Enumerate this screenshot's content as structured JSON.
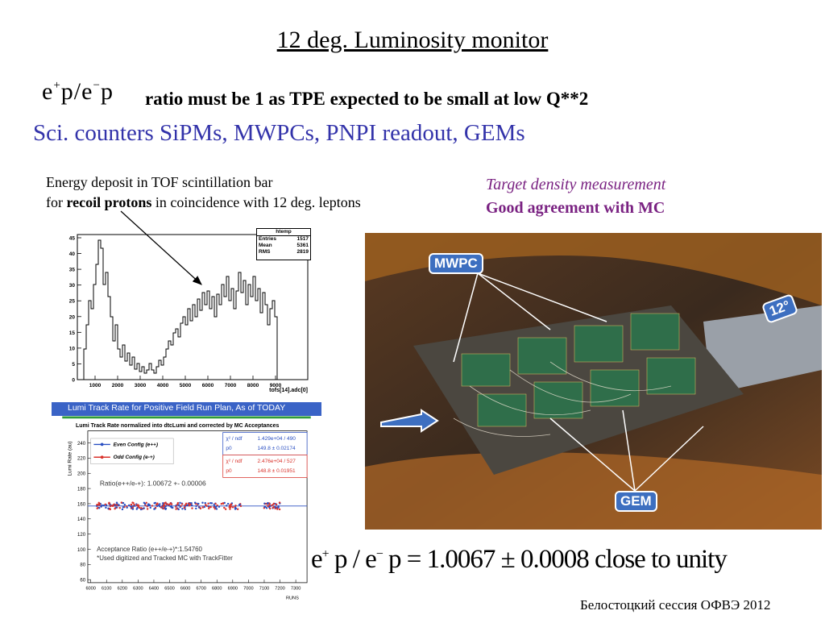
{
  "title": "12 deg. Luminosity monitor",
  "eq1": {
    "a": "e",
    "a_sup": "+",
    "b": "p",
    "slash": "/",
    "c": "e",
    "c_sup": "−",
    "d": "p"
  },
  "subtitle": "ratio must be 1 as TPE expected to be small at low Q**2",
  "line3": "Sci. counters SiPMs, MWPCs, PNPI readout, GEMs",
  "energy": {
    "line1": "Energy deposit in  TOF scintillation bar",
    "line2_pre": "for ",
    "line2_bold": "recoil protons",
    "line2_post": " in coincidence with 12 deg. leptons"
  },
  "target": {
    "line1": "Target density measurement",
    "line2": "Good agreement with MC"
  },
  "histogram": {
    "stats": {
      "name": "htemp",
      "entries_label": "Entries",
      "entries": "1517",
      "mean_label": "Mean",
      "mean": "5361",
      "rms_label": "RMS",
      "rms": "2819"
    },
    "xlabel": "tofs[14].adc[0]",
    "yticks": [
      "0",
      "5",
      "10",
      "15",
      "20",
      "25",
      "30",
      "35",
      "40",
      "45"
    ],
    "xticks": [
      "1000",
      "2000",
      "3000",
      "4000",
      "5000",
      "6000",
      "7000",
      "8000",
      "9000"
    ]
  },
  "lumi": {
    "header": "Lumi Track Rate for Positive Field Run Plan, As of TODAY",
    "plot_title": "Lumi Track Rate normalized into dtcLumi and corrected by MC Acceptances",
    "ylabel": "Lumi Rate (au)",
    "xlabel": "RUNS",
    "legend_even": "Even Config (e++)",
    "legend_odd": "Odd Config  (e-+)",
    "fit_blue": {
      "chi_label": "χ² / ndf",
      "chi": "1.429e+04 / 490",
      "p0_label": "p0",
      "p0": "149.8 ± 0.02174"
    },
    "fit_red": {
      "chi_label": "χ² / ndf",
      "chi": "2.476e+04 / 527",
      "p0_label": "p0",
      "p0": "148.8 ± 0.01951"
    },
    "ratio_text": "Ratio(e++/e-+): 1.00672 +- 0.00006",
    "acc_line1": "Acceptance Ratio (e++/e-+)*:1.54760",
    "acc_line2": "*Used digitized and Tracked MC with TrackFitter",
    "yticks": [
      "60",
      "80",
      "100",
      "120",
      "140",
      "160",
      "180",
      "200",
      "220",
      "240"
    ],
    "xticks": [
      "6000",
      "6100",
      "6200",
      "6300",
      "6400",
      "6500",
      "6600",
      "6700",
      "6800",
      "6900",
      "7000",
      "7100",
      "7200",
      "7300"
    ],
    "blue": "#2a4fc2",
    "red": "#d9322b"
  },
  "photo": {
    "mwpc": "MWPC",
    "angle": "12°",
    "gem": "GEM"
  },
  "eq2": {
    "a": "e",
    "a_sup": "+",
    "b": " p / e",
    "b_sup": "−",
    "rest": " p = 1.0067 ± 0.0008 close to unity"
  },
  "footer": "Белостоцкий сессия ОФВЭ 2012"
}
